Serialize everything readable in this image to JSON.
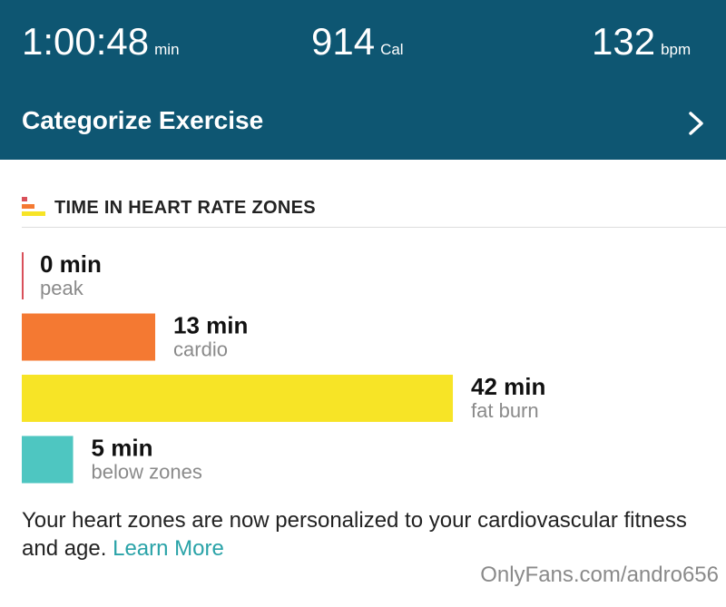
{
  "header": {
    "stats": [
      {
        "value": "1:00:48",
        "unit": "min"
      },
      {
        "value": "914",
        "unit": "Cal"
      },
      {
        "value": "132",
        "unit": "bpm"
      }
    ],
    "action": "Categorize Exercise"
  },
  "section": {
    "title": "TIME IN HEART RATE ZONES",
    "zones": [
      {
        "value": 0,
        "label": "0 min",
        "name": "peak",
        "color": "#d9505a"
      },
      {
        "value": 13,
        "label": "13 min",
        "name": "cardio",
        "color": "#f47932"
      },
      {
        "value": 42,
        "label": "42 min",
        "name": "fat burn",
        "color": "#f7e426"
      },
      {
        "value": 5,
        "label": "5 min",
        "name": "below zones",
        "color": "#4ec6c1"
      }
    ]
  },
  "footer": {
    "text": "Your heart zones are now personalized to your cardiovascular fitness and age.",
    "link": "Learn More"
  },
  "watermark": "OnlyFans.com/andro656"
}
